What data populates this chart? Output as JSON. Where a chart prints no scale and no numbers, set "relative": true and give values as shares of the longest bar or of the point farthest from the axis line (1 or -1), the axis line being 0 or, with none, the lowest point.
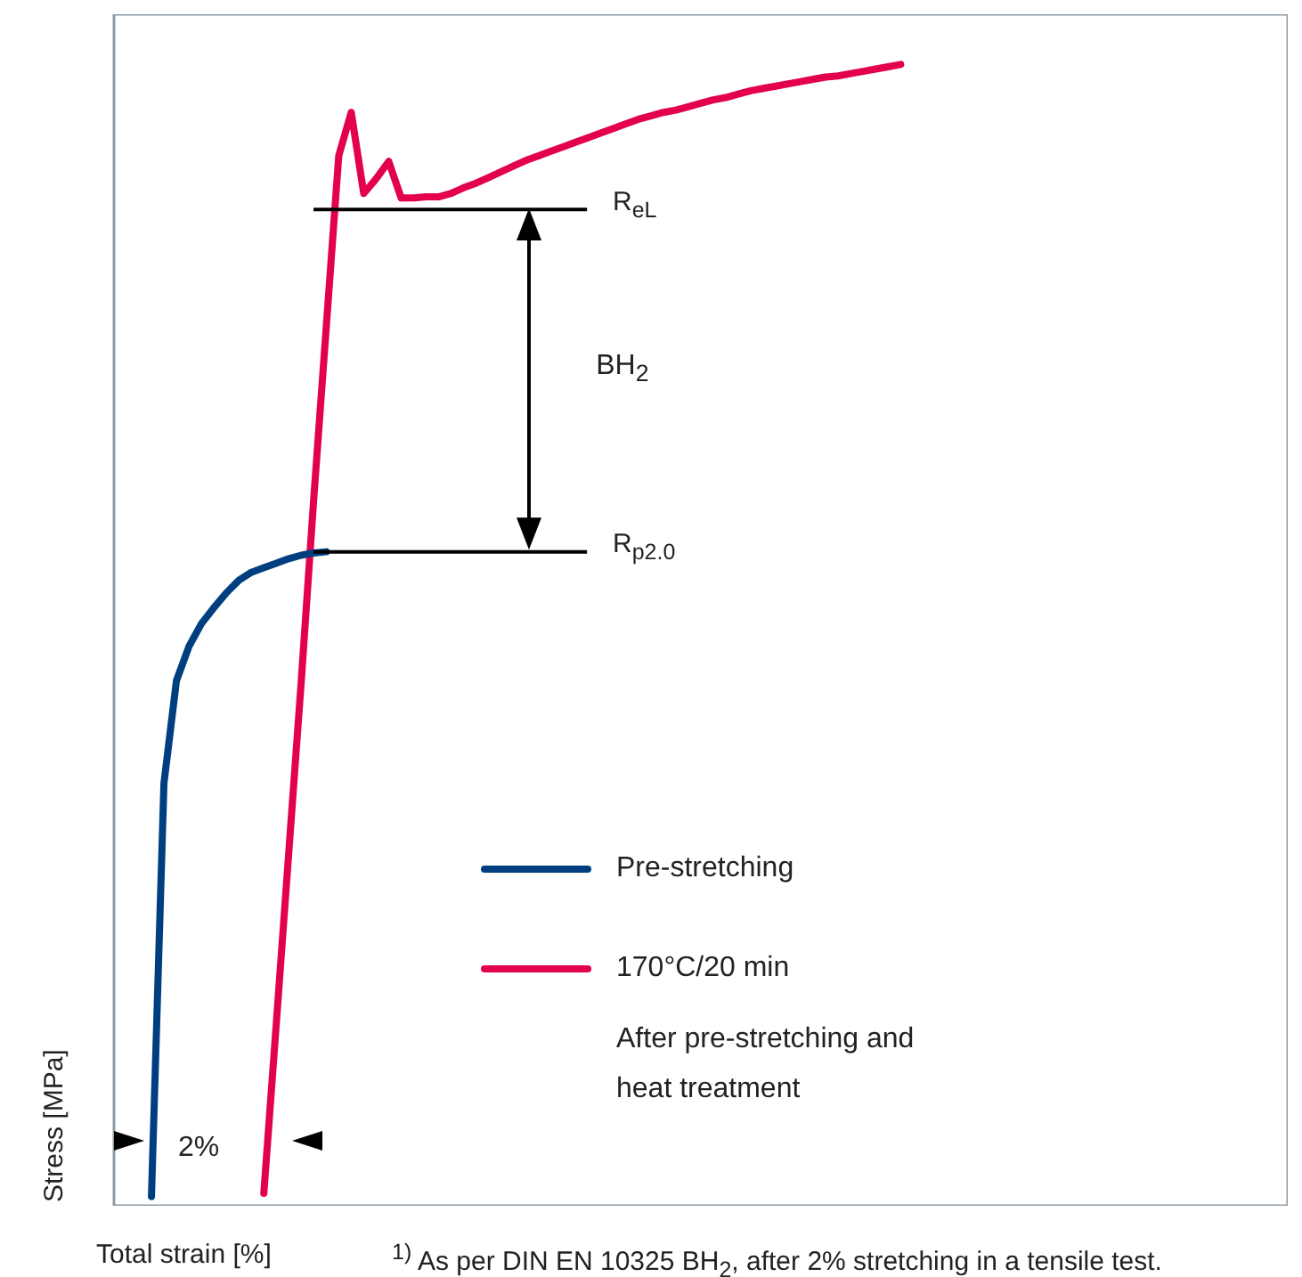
{
  "chart_data": {
    "type": "line",
    "relative": true,
    "xlabel": "Total strain [%]",
    "ylabel": "Stress [MPa]",
    "legend": "bottom",
    "marker": "none",
    "line_style": "solid",
    "categories": [
      null,
      null,
      null,
      null,
      null,
      null,
      null,
      null,
      null,
      null,
      null,
      null,
      null,
      null,
      null,
      null,
      null,
      null,
      null,
      null,
      null,
      null,
      null,
      null,
      null,
      null,
      null,
      null,
      null,
      null,
      null,
      null,
      null,
      null,
      null,
      null,
      null,
      null,
      null,
      null,
      null,
      null,
      null,
      null,
      null,
      null,
      null,
      null,
      null,
      null,
      null,
      null,
      null,
      null,
      null,
      null,
      null,
      null,
      null,
      null,
      null,
      null,
      null,
      null,
      null,
      null,
      null,
      null,
      null,
      null,
      null,
      null,
      null,
      null,
      null,
      null,
      null,
      null,
      null,
      null,
      null,
      null,
      null,
      null,
      null,
      null,
      null,
      null,
      null,
      null,
      null,
      null,
      null,
      null,
      null
    ],
    "series": [
      {
        "name": "Pre-stretching",
        "color": "#003f7f",
        "values": [
          null,
          null,
          null,
          0.008,
          0.37,
          0.46,
          0.49,
          0.51,
          0.524,
          0.537,
          0.548,
          0.555,
          0.559,
          0.563,
          0.567,
          0.57,
          0.572,
          0.573,
          null,
          null,
          null,
          null,
          null,
          null,
          null,
          null,
          null,
          null,
          null,
          null,
          null,
          null,
          null,
          null,
          null,
          null,
          null,
          null,
          null,
          null,
          null,
          null,
          null,
          null,
          null,
          null,
          null,
          null,
          null,
          null,
          null,
          null,
          null,
          null,
          null,
          null,
          null,
          null,
          null,
          null,
          null,
          null,
          null,
          null,
          null,
          null,
          null,
          null,
          null,
          null,
          null,
          null,
          null,
          null,
          null,
          null,
          null,
          null,
          null,
          null,
          null,
          null,
          null,
          null,
          null,
          null,
          null,
          null,
          null,
          null,
          null,
          null,
          null,
          null,
          null
        ]
      },
      {
        "name": "170°C/20 min",
        "color": "#e2004f",
        "values": [
          null,
          null,
          null,
          null,
          null,
          null,
          null,
          null,
          null,
          null,
          null,
          null,
          0.011,
          0.16,
          0.31,
          0.46,
          0.62,
          0.77,
          0.92,
          0.958,
          0.887,
          0.9,
          0.915,
          0.883,
          0.883,
          0.884,
          0.884,
          0.887,
          0.892,
          0.896,
          0.901,
          0.906,
          0.911,
          0.916,
          0.92,
          0.924,
          0.928,
          0.932,
          0.936,
          0.94,
          0.944,
          0.948,
          0.952,
          0.955,
          0.958,
          0.96,
          0.963,
          0.966,
          0.969,
          0.971,
          0.974,
          0.977,
          0.979,
          0.981,
          0.983,
          0.985,
          0.987,
          0.989,
          0.99,
          0.992,
          0.994,
          0.996,
          0.998,
          1,
          null,
          null,
          null,
          null,
          null,
          null,
          null,
          null,
          null,
          null,
          null,
          null,
          null,
          null,
          null,
          null,
          null,
          null,
          null,
          null,
          null,
          null,
          null,
          null,
          null,
          null,
          null,
          null,
          null,
          null,
          null
        ]
      }
    ],
    "ref_lines": [
      {
        "axis": "y",
        "value": 0.873,
        "label": "R$_{eL}$",
        "color": "#000000"
      },
      {
        "axis": "y",
        "value": 0.573,
        "label": "R$_{p2.0}$",
        "color": "#000000"
      }
    ],
    "annotations": [
      "BH$_{2}$",
      "After pre-stretching and heat treatment",
      "2%",
      "$^{1)}$ As per DIN EN 10325 BH$_{2}$, after 2% stretching in a tensile test."
    ]
  }
}
